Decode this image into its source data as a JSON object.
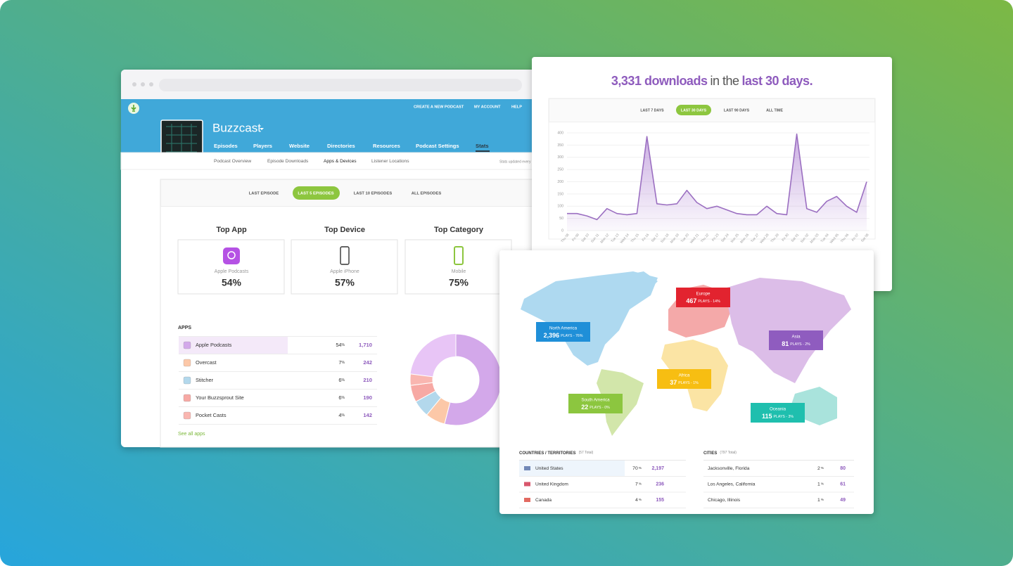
{
  "browser": {
    "nav": [
      "CREATE A NEW PODCAST",
      "MY ACCOUNT",
      "HELP"
    ],
    "podcast_name": "Buzzcast",
    "tabs": [
      "Episodes",
      "Players",
      "Website",
      "Directories",
      "Resources",
      "Podcast Settings",
      "Stats"
    ],
    "active_tab": 6,
    "subnav": [
      "Podcast Overview",
      "Episode Downloads",
      "Apps & Devices",
      "Listener Locations"
    ],
    "active_subnav": 2,
    "subnav_note": "Stats updated every",
    "filters": [
      "LAST EPISODE",
      "LAST 5 EPISODES",
      "LAST 10 EPISODES",
      "ALL EPISODES"
    ],
    "active_filter": 1,
    "top_cards": [
      {
        "title": "Top App",
        "label": "Apple Podcasts",
        "value": "54%"
      },
      {
        "title": "Top Device",
        "label": "Apple iPhone",
        "value": "57%"
      },
      {
        "title": "Top Category",
        "label": "Mobile",
        "value": "75%"
      }
    ],
    "apps": {
      "title": "APPS",
      "unit": "%",
      "link": "See all apps",
      "rows": [
        {
          "name": "Apple Podcasts",
          "percent": 54,
          "count": "1,710",
          "color": "#d3a8ea"
        },
        {
          "name": "Overcast",
          "percent": 7,
          "count": "242",
          "color": "#fcc8a8"
        },
        {
          "name": "Stitcher",
          "percent": 6,
          "count": "210",
          "color": "#b3d8ec"
        },
        {
          "name": "Your Buzzsprout Site",
          "percent": 6,
          "count": "190",
          "color": "#f7a9a4"
        },
        {
          "name": "Pocket Casts",
          "percent": 4,
          "count": "142",
          "color": "#f9b6b0"
        }
      ]
    }
  },
  "chart_data": {
    "type": "area",
    "title": [
      "3,331 downloads",
      "in the",
      "last 30 days."
    ],
    "ranges": [
      "LAST 7 DAYS",
      "LAST 30 DAYS",
      "LAST 90 DAYS",
      "ALL TIME"
    ],
    "active_range": 1,
    "categories": [
      "Thu 08",
      "Fri 09",
      "Sat 10",
      "Sun 11",
      "Mon 12",
      "Tue 13",
      "Wed 14",
      "Thu 15",
      "Fri 16",
      "Sat 17",
      "Sun 18",
      "Mon 19",
      "Tue 20",
      "Wed 21",
      "Thu 22",
      "Fri 23",
      "Sat 24",
      "Sun 25",
      "Mon 26",
      "Tue 27",
      "Wed 28",
      "Thu 29",
      "Fri 30",
      "Sat 01",
      "Sun 02",
      "Mon 03",
      "Tue 04",
      "Wed 05",
      "Thu 06",
      "Fri 07",
      "Sat 08"
    ],
    "values": [
      70,
      70,
      60,
      45,
      90,
      70,
      65,
      70,
      385,
      110,
      105,
      110,
      165,
      115,
      90,
      100,
      85,
      70,
      65,
      65,
      100,
      70,
      65,
      395,
      90,
      75,
      120,
      140,
      100,
      75,
      200
    ],
    "ylim": [
      0,
      400
    ],
    "yticks": [
      0,
      50,
      100,
      150,
      200,
      250,
      300,
      350,
      400
    ],
    "color": "#9b6fc1",
    "grid": true
  },
  "map": {
    "regions": [
      {
        "name": "Europe",
        "plays": "467",
        "detail": "PLAYS - 14%",
        "color": "#e2232f"
      },
      {
        "name": "North America",
        "plays": "2,396",
        "detail": "PLAYS - 76%",
        "color": "#1f8fd8"
      },
      {
        "name": "Asia",
        "plays": "81",
        "detail": "PLAYS - 2%",
        "color": "#8f5cbf"
      },
      {
        "name": "Africa",
        "plays": "37",
        "detail": "PLAYS - 1%",
        "color": "#f7be12"
      },
      {
        "name": "South America",
        "plays": "22",
        "detail": "PLAYS - 0%",
        "color": "#8cc63f"
      },
      {
        "name": "Oceania",
        "plays": "115",
        "detail": "PLAYS - 3%",
        "color": "#1fbfae"
      }
    ],
    "countries": {
      "title": "COUNTRIES / TERRITORIES",
      "total": "(57 Total)",
      "unit": "%",
      "rows": [
        {
          "name": "United States",
          "percent": 70,
          "count": "2,197"
        },
        {
          "name": "United Kingdom",
          "percent": 7,
          "count": "236"
        },
        {
          "name": "Canada",
          "percent": 4,
          "count": "155"
        }
      ]
    },
    "cities": {
      "title": "CITIES",
      "total": "(797 Total)",
      "unit": "%",
      "rows": [
        {
          "name": "Jacksonville, Florida",
          "percent": 2,
          "count": "80"
        },
        {
          "name": "Los Angeles, California",
          "percent": 1,
          "count": "61"
        },
        {
          "name": "Chicago, Illinois",
          "percent": 1,
          "count": "49"
        }
      ]
    }
  }
}
